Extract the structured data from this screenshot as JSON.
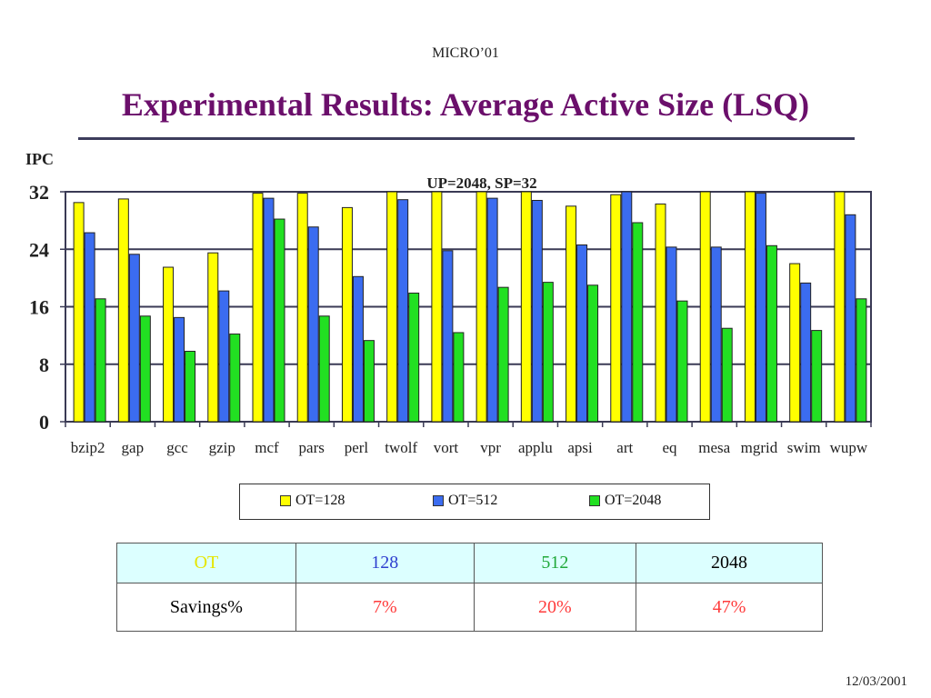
{
  "slide": {
    "header": "MICRO’01",
    "title": "Experimental Results: Average Active Size (LSQ)",
    "footer": "12/03/2001"
  },
  "colors": {
    "title": "#6b0f6b",
    "ot128": "#ffff00",
    "ot512": "#3b6cf0",
    "ot2048": "#22e022",
    "table_header_bg": "#dcffff"
  },
  "chart_data": {
    "type": "bar",
    "title": "UP=2048, SP=32",
    "xlabel": "",
    "ylabel": "IPC",
    "ylim": [
      0,
      32
    ],
    "yticks": [
      0,
      8,
      16,
      24,
      32
    ],
    "grid": true,
    "legend_position": "bottom",
    "categories": [
      "bzip2",
      "gap",
      "gcc",
      "gzip",
      "mcf",
      "pars",
      "perl",
      "twolf",
      "vort",
      "vpr",
      "applu",
      "apsi",
      "art",
      "eq",
      "mesa",
      "mgrid",
      "swim",
      "wupw"
    ],
    "series": [
      {
        "name": "OT=128",
        "color": "#ffff00",
        "values": [
          30.5,
          31,
          21.5,
          23.5,
          31.8,
          31.8,
          29.8,
          32,
          32,
          32,
          32,
          30,
          31.6,
          30.3,
          32,
          32,
          22,
          32
        ]
      },
      {
        "name": "OT=512",
        "color": "#3b6cf0",
        "values": [
          26.3,
          23.3,
          14.5,
          18.2,
          31.1,
          27.1,
          20.2,
          30.9,
          23.8,
          31.1,
          30.8,
          24.6,
          32,
          24.3,
          24.3,
          31.8,
          19.3,
          28.8
        ]
      },
      {
        "name": "OT=2048",
        "color": "#22e022",
        "values": [
          17.1,
          14.7,
          9.8,
          12.2,
          28.2,
          14.7,
          11.3,
          17.9,
          12.4,
          18.7,
          19.4,
          19,
          27.7,
          16.8,
          13,
          24.5,
          12.7,
          17.1
        ]
      }
    ]
  },
  "table": {
    "header": [
      "OT",
      "128",
      "512",
      "2048"
    ],
    "header_colors": [
      "#222222",
      "#e6e600",
      "#2e3fcf",
      "#1fa83a"
    ],
    "row_label": "Savings%",
    "row_values": [
      "7%",
      "20%",
      "47%"
    ],
    "row_value_color": "#ff3b3b"
  }
}
